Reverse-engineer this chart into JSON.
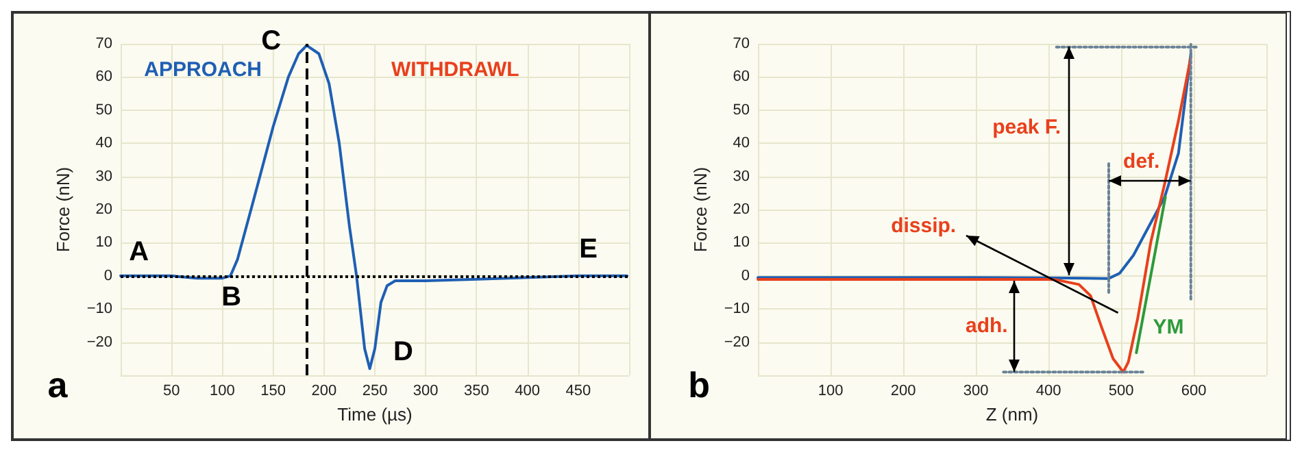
{
  "chart_data": [
    {
      "type": "line",
      "xlabel": "Time (µs)",
      "ylabel": "Force (nN)",
      "x": [
        0,
        50,
        75,
        100,
        108,
        115,
        130,
        150,
        165,
        175,
        183,
        195,
        205,
        215,
        225,
        232,
        240,
        245,
        250,
        256,
        262,
        270,
        300,
        350,
        400,
        450,
        498
      ],
      "series": [
        {
          "color": "#1f5fb4",
          "values": [
            0,
            0,
            -0.7,
            -0.7,
            0,
            5,
            22,
            45,
            60,
            67,
            69.5,
            67,
            58,
            40,
            15,
            0,
            -22,
            -28,
            -22,
            -8,
            -3,
            -1.5,
            -1.5,
            -1,
            -0.5,
            0,
            0
          ]
        }
      ],
      "xlim": [
        0,
        500
      ],
      "ylim": [
        -30,
        70
      ],
      "xticks": [
        50,
        100,
        150,
        200,
        250,
        300,
        350,
        400,
        450
      ],
      "yticks": [
        -20,
        -10,
        0,
        10,
        20,
        30,
        40,
        50,
        60,
        70
      ],
      "grid": true,
      "marker": "none",
      "ref_lines": [
        {
          "axis": "x",
          "value": 183,
          "line_style": "dashed",
          "color": "#000000"
        },
        {
          "axis": "y",
          "value": 0,
          "line_style": "dotted",
          "color": "#000000"
        }
      ],
      "annotations": [
        "a",
        "A",
        "B",
        "C",
        "D",
        "E",
        "APPROACH",
        "WITHDRAWL"
      ]
    },
    {
      "type": "line",
      "xlabel": "Z (nm)",
      "ylabel": "Force (nN)",
      "series": [
        {
          "color": "#1f5fb4",
          "x": [
            0,
            100,
            200,
            300,
            400,
            450,
            483,
            498,
            517,
            535,
            560,
            579,
            596
          ],
          "values": [
            -0.5,
            -0.5,
            -0.5,
            -0.5,
            -0.6,
            -0.7,
            -0.8,
            0.8,
            6.2,
            13.6,
            23.8,
            37,
            67
          ]
        },
        {
          "color": "#e8401c",
          "x": [
            0,
            100,
            200,
            300,
            400,
            411,
            442,
            458,
            473,
            489,
            503,
            510,
            523,
            541,
            560,
            579,
            596
          ],
          "values": [
            -1.1,
            -1.1,
            -1.1,
            -1.1,
            -1.1,
            -1.2,
            -2.6,
            -6,
            -15.4,
            -25,
            -29,
            -26,
            -12.7,
            10.3,
            27.8,
            46.8,
            66
          ]
        },
        {
          "color": "#2e9a3c",
          "x": [
            521,
            561
          ],
          "values": [
            -23.2,
            23.8
          ]
        },
        {
          "color": "#6a8296",
          "line_style": "dotted",
          "x": [
            411,
            605
          ],
          "values": [
            69,
            69
          ]
        },
        {
          "color": "#6a8296",
          "line_style": "dotted",
          "x": [
            596,
            596
          ],
          "values": [
            -7,
            70
          ]
        },
        {
          "color": "#6a8296",
          "line_style": "dotted",
          "x": [
            483,
            483
          ],
          "values": [
            -5,
            34
          ]
        },
        {
          "color": "#6a8296",
          "line_style": "dotted",
          "x": [
            338,
            530
          ],
          "values": [
            -29,
            -29
          ]
        }
      ],
      "xlim": [
        0,
        700
      ],
      "ylim": [
        -30,
        70
      ],
      "xticks": [
        100,
        200,
        300,
        400,
        500,
        600
      ],
      "yticks": [
        -20,
        -10,
        0,
        10,
        20,
        30,
        40,
        50,
        60,
        70
      ],
      "grid": true,
      "marker": "none",
      "annotations": [
        "b",
        "peak F.",
        {
          "text": "def.",
          "x": 596,
          "y": 28.5
        },
        "dissip.",
        "adh.",
        "YM"
      ]
    }
  ]
}
